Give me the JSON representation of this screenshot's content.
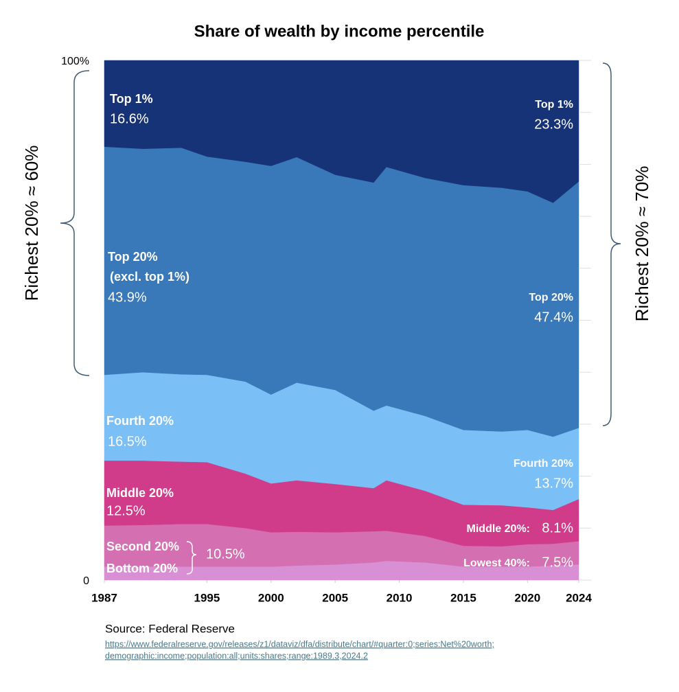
{
  "chart_data": {
    "type": "stacked_area",
    "title": "Share of wealth by income percentile",
    "x": [
      1987,
      1990,
      1993,
      1995,
      1998,
      2000,
      2002,
      2005,
      2008,
      2009,
      2012,
      2015,
      2018,
      2020,
      2022,
      2024
    ],
    "xlim": [
      1987,
      2024
    ],
    "xticks": [
      1987,
      1995,
      2000,
      2005,
      2010,
      2015,
      2020,
      2024
    ],
    "ylim": [
      0,
      100
    ],
    "yticks": [
      0,
      {
        "value": 100,
        "label": "100%"
      }
    ],
    "minor_yticks": [
      10,
      20,
      30,
      40,
      50,
      60,
      70,
      80,
      90
    ],
    "series": [
      {
        "name": "Bottom 20%",
        "color": "#d98fd4",
        "values": [
          2.6,
          2.6,
          2.6,
          2.6,
          2.6,
          2.6,
          2.8,
          3.0,
          3.4,
          3.7,
          3.4,
          2.6,
          2.6,
          2.6,
          2.8,
          3.0
        ]
      },
      {
        "name": "Second 20%",
        "color": "#d46fb2",
        "values": [
          7.9,
          8.0,
          8.2,
          8.2,
          7.4,
          6.6,
          6.5,
          6.2,
          6.0,
          5.8,
          5.1,
          4.0,
          3.9,
          4.3,
          4.2,
          4.5
        ]
      },
      {
        "name": "Middle 20%",
        "color": "#d13c8a",
        "values": [
          12.5,
          12.4,
          12.0,
          11.9,
          10.5,
          9.4,
          9.9,
          9.3,
          8.3,
          9.7,
          8.7,
          7.9,
          7.9,
          7.1,
          6.5,
          8.1
        ]
      },
      {
        "name": "Fourth 20%",
        "color": "#7abff6",
        "values": [
          16.5,
          17.0,
          16.8,
          16.8,
          17.7,
          17.1,
          18.8,
          18.1,
          14.9,
          14.4,
          14.4,
          14.4,
          14.2,
          14.9,
          14.1,
          13.7
        ]
      },
      {
        "name": "Top 20%",
        "color": "#3978b9",
        "values": [
          43.9,
          43.0,
          43.6,
          42.0,
          42.3,
          44.0,
          43.4,
          41.4,
          43.9,
          45.9,
          45.8,
          47.1,
          46.9,
          45.9,
          45.0,
          47.4
        ]
      },
      {
        "name": "Top 1%",
        "color": "#163378",
        "values": [
          16.6,
          17.0,
          16.8,
          18.5,
          19.5,
          20.3,
          18.6,
          22.0,
          23.5,
          20.5,
          22.6,
          24.0,
          24.5,
          25.2,
          27.4,
          23.3
        ]
      }
    ],
    "annotations": [
      "Top 1%",
      "16.6%",
      "Top 20%",
      "(excl. top 1%)",
      "43.9%",
      "Fourth 20%",
      "16.5%",
      "Middle 20%",
      "12.5%",
      "Second 20%",
      "Bottom 20%",
      "10.5%",
      "Top 1%",
      "23.3%",
      "Top 20%",
      "47.4%",
      "Fourth 20%",
      "13.7%",
      "Middle 20%:",
      "8.1%",
      "Lowest 40%:",
      "7.5%"
    ],
    "side_labels": [
      "Richest 20%  ≈ 60%",
      "Richest 20%  ≈ 70%"
    ],
    "source": {
      "text": "Source: Federal Reserve",
      "url_lines": [
        "https://www.federalreserve.gov/releases/z1/dataviz/dfa/distribute/chart/#quarter:0;series:Net%20worth;",
        "demographic:income;population:all;units:shares;range:1989.3,2024.2"
      ]
    }
  }
}
